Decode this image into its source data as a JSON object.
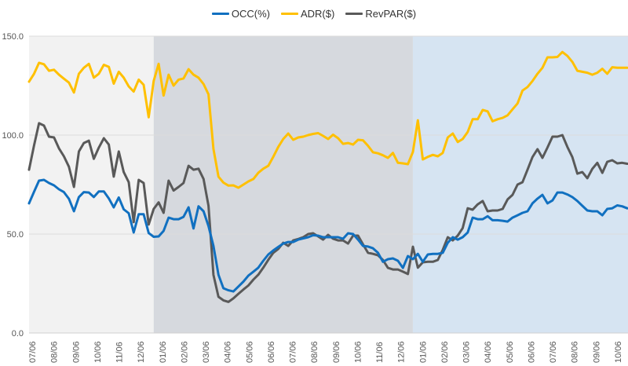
{
  "chart_data": {
    "type": "line",
    "title": "",
    "xlabel": "",
    "ylabel": "",
    "ylim": [
      0,
      150
    ],
    "y_ticks": [
      "0.0",
      "50.0",
      "100.0",
      "150.0"
    ],
    "y_tick_values": [
      0,
      50,
      100,
      150
    ],
    "x_tick_labels": [
      "07/06",
      "08/06",
      "09/06",
      "10/06",
      "11/06",
      "12/06",
      "01/06",
      "02/06",
      "03/06",
      "04/06",
      "05/06",
      "06/06",
      "07/06",
      "08/06",
      "09/06",
      "10/06",
      "11/06",
      "12/06",
      "01/06",
      "02/06",
      "03/06",
      "04/06",
      "05/06",
      "06/06",
      "07/06",
      "08/06",
      "09/06",
      "10/06"
    ],
    "points_per_series": 121,
    "grid": true,
    "legend_position": "top-center",
    "shaded_periods": [
      {
        "from_index": 0,
        "to_index": 25,
        "color": "#f2f2f2"
      },
      {
        "from_index": 25,
        "to_index": 77,
        "color": "#d6d9de"
      },
      {
        "from_index": 77,
        "to_index": 120,
        "color": "#d6e4f2"
      }
    ],
    "series": [
      {
        "name": "OCC(%)",
        "color": "#1170c0",
        "values": [
          65.5,
          71.4,
          77,
          77.4,
          75.8,
          74.6,
          72.6,
          71.2,
          67.8,
          61.5,
          68.7,
          71.2,
          71,
          68.7,
          71.5,
          71.5,
          68,
          63.5,
          68.5,
          62.5,
          60.5,
          50.8,
          60,
          60,
          50.5,
          48.6,
          48.8,
          51.6,
          58.3,
          57.5,
          57.5,
          58.7,
          63.5,
          52.8,
          64,
          61.5,
          54,
          44,
          29.4,
          22.6,
          21.6,
          21,
          23.5,
          26,
          29,
          31,
          33,
          36.5,
          39.7,
          41.7,
          43.5,
          45.2,
          46,
          46,
          47.2,
          47.8,
          48.4,
          49.4,
          49.2,
          48.4,
          48.4,
          48.4,
          48.4,
          47.6,
          50.4,
          50,
          47.2,
          44,
          43.7,
          42.8,
          40.5,
          36,
          37.3,
          37.7,
          36.5,
          32.9,
          38.9,
          37.3,
          40,
          36,
          39.7,
          40,
          40,
          40.5,
          45.6,
          48.4,
          47.2,
          48.4,
          50.8,
          58.3,
          57.5,
          57.5,
          59,
          57,
          57,
          56.7,
          56.3,
          58.3,
          59.5,
          60.7,
          61.5,
          65.5,
          67.9,
          69.8,
          65.5,
          67,
          71,
          71,
          70,
          68.7,
          66.7,
          64.3,
          61.9,
          61.5,
          61.5,
          59.5,
          62.7,
          63,
          64.5,
          64,
          63
        ]
      },
      {
        "name": "ADR($)",
        "color": "#ffc000",
        "values": [
          127,
          131,
          136.5,
          135.8,
          132.5,
          133,
          130.5,
          128.5,
          126.5,
          121.5,
          131,
          134,
          136,
          129,
          131,
          135.5,
          134.5,
          126,
          132,
          129,
          124.6,
          122,
          128,
          125.4,
          109,
          127.4,
          136,
          120,
          130.5,
          125,
          128,
          128.6,
          133.3,
          130.5,
          129,
          125.8,
          120.6,
          93,
          79,
          76,
          74.5,
          74.6,
          73.4,
          75,
          76.6,
          77.8,
          81,
          83,
          84.5,
          89,
          94,
          98,
          100.8,
          97.6,
          98.8,
          99.2,
          100,
          100.6,
          101,
          99.6,
          98,
          100.2,
          98.4,
          95.6,
          96,
          95.2,
          97.6,
          97.4,
          94.6,
          91.3,
          90.8,
          89.8,
          88.5,
          91,
          86,
          85.7,
          85.3,
          91.5,
          107.5,
          87.7,
          89,
          90,
          89.3,
          91,
          98.8,
          100.8,
          96.5,
          98,
          101.6,
          108,
          108,
          112.7,
          112,
          107,
          108,
          108.7,
          110,
          113,
          116,
          122.5,
          124.3,
          127.3,
          131,
          134,
          139.3,
          139.3,
          139.5,
          142,
          140,
          137,
          132.5,
          132,
          131.5,
          130.5,
          131.5,
          133.5,
          131,
          134.3,
          134,
          134,
          134
        ]
      },
      {
        "name": "RevPAR($)",
        "color": "#595959",
        "values": [
          82.5,
          94.8,
          106,
          104.8,
          99.2,
          98.8,
          93.3,
          89.3,
          84,
          73.8,
          91.7,
          96,
          97.2,
          88,
          93.7,
          98.4,
          95.2,
          79,
          91.7,
          81.3,
          76.2,
          56,
          77.4,
          75.8,
          54.8,
          62.7,
          66,
          60.7,
          77,
          72,
          73.8,
          75.8,
          84.5,
          82.5,
          83,
          77.8,
          64.3,
          29.4,
          18.3,
          16.5,
          15.7,
          17.5,
          19.8,
          22,
          24,
          27,
          29.5,
          33,
          37,
          40.5,
          42.5,
          45.6,
          44,
          46.8,
          47.5,
          48.4,
          50,
          50.4,
          48.8,
          47.2,
          49.6,
          47.6,
          46.8,
          46.8,
          45.2,
          49.2,
          49.2,
          44.8,
          40.5,
          40,
          39.3,
          36.9,
          32.9,
          32.1,
          32.1,
          31,
          29.8,
          43.6,
          33,
          35.7,
          36,
          36,
          36.9,
          42,
          48.4,
          46.8,
          49.2,
          53,
          63,
          62.3,
          65,
          66.7,
          61.5,
          61.9,
          61.9,
          62.7,
          67.5,
          69.8,
          75,
          76.2,
          82.5,
          88.9,
          92.9,
          88.5,
          93.7,
          99.2,
          99.2,
          100,
          94,
          88.9,
          80.5,
          81.3,
          78.2,
          82.9,
          86,
          80.9,
          86.5,
          87.3,
          85.7,
          86,
          85.5
        ]
      }
    ]
  }
}
